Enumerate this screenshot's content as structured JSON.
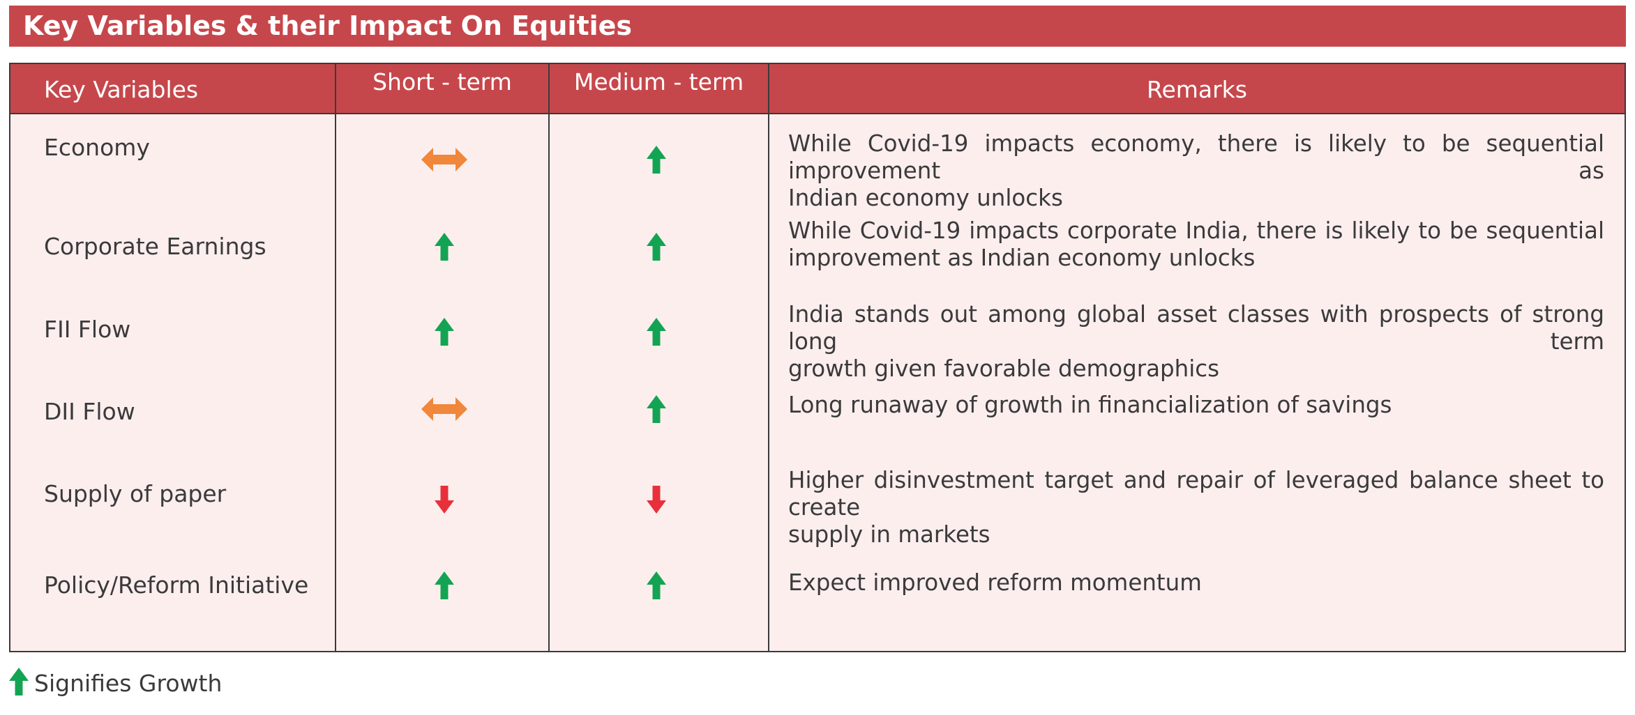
{
  "title": "Key Variables & their Impact On Equities",
  "headers": {
    "key_variables": "Key Variables",
    "short_term": "Short  - term",
    "medium_term": "Medium - term",
    "remarks": "Remarks"
  },
  "rows": [
    {
      "variable": "Economy",
      "short_term": "neutral",
      "medium_term": "up",
      "remark_lines": [
        "While Covid-19 impacts economy, there is likely to be sequential improvement as",
        "Indian economy unlocks"
      ]
    },
    {
      "variable": "Corporate Earnings",
      "short_term": "up",
      "medium_term": "up",
      "remark_lines": [
        "While Covid-19 impacts corporate India, there is likely to be sequential",
        "improvement as Indian economy unlocks"
      ]
    },
    {
      "variable": "FII Flow",
      "short_term": "up",
      "medium_term": "up",
      "remark_lines": [
        "India stands out among global asset classes with prospects of strong long term",
        "growth given favorable demographics"
      ]
    },
    {
      "variable": "DII Flow",
      "short_term": "neutral",
      "medium_term": "up",
      "remark_lines": [
        "Long runaway of growth in financialization of savings"
      ]
    },
    {
      "variable": "Supply of paper",
      "short_term": "down",
      "medium_term": "down",
      "remark_lines": [
        "Higher disinvestment target and repair of leveraged balance sheet to create",
        "supply in markets"
      ]
    },
    {
      "variable": "Policy/Reform Initiative",
      "short_term": "up",
      "medium_term": "up",
      "remark_lines": [
        "Expect improved reform momentum"
      ]
    }
  ],
  "legend": {
    "icon": "up-arrow-icon",
    "text": "Signifies Growth"
  },
  "colors": {
    "header_red": "#c6474b",
    "body_pink": "#fdeeee",
    "up_green": "#13a453",
    "down_red": "#e8303b",
    "neutral_orange": "#f0873a"
  }
}
